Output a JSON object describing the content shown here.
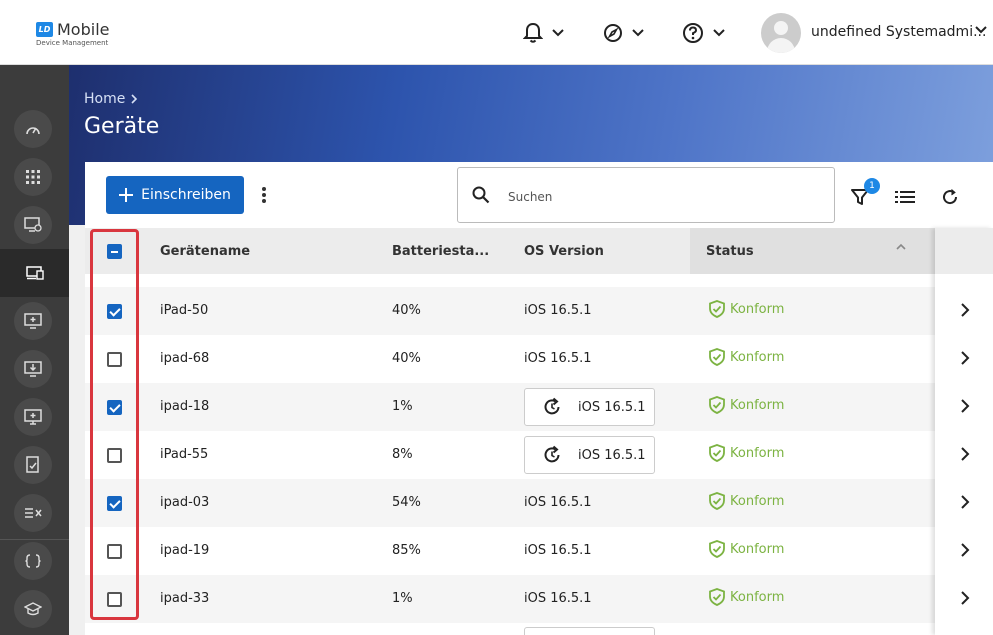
{
  "header": {
    "logo_mark": "LD",
    "logo_title": "Mobile",
    "logo_subtitle": "Device Management",
    "user_name": "undefined Systemadmi..."
  },
  "sidebar": {
    "items": [
      {
        "icon": "dashboard-icon"
      },
      {
        "icon": "apps-grid-icon"
      },
      {
        "icon": "device-settings-icon"
      },
      {
        "icon": "devices-icon",
        "active": true
      },
      {
        "icon": "device-add-icon"
      },
      {
        "icon": "device-download-icon"
      },
      {
        "icon": "monitor-add-icon"
      },
      {
        "icon": "compliance-icon"
      },
      {
        "icon": "rules-icon"
      },
      {
        "icon": "code-braces-icon"
      },
      {
        "icon": "school-icon"
      }
    ]
  },
  "page": {
    "breadcrumb": "Home",
    "title": "Geräte"
  },
  "toolbar": {
    "enroll_label": "Einschreiben",
    "search_placeholder": "Suchen",
    "filter_count": "1"
  },
  "table": {
    "columns": [
      "Gerätename",
      "Batteriesta...",
      "OS Version",
      "Status"
    ],
    "rows": [
      {
        "checked": true,
        "name": "iPad-50",
        "battery": "40%",
        "os": "iOS 16.5.1",
        "os_update": false,
        "status": "Konform"
      },
      {
        "checked": false,
        "name": "ipad-68",
        "battery": "40%",
        "os": "iOS 16.5.1",
        "os_update": false,
        "status": "Konform"
      },
      {
        "checked": true,
        "name": "ipad-18",
        "battery": "1%",
        "os": "iOS 16.5.1",
        "os_update": true,
        "status": "Konform"
      },
      {
        "checked": false,
        "name": "iPad-55",
        "battery": "8%",
        "os": "iOS 16.5.1",
        "os_update": true,
        "status": "Konform"
      },
      {
        "checked": true,
        "name": "ipad-03",
        "battery": "54%",
        "os": "iOS 16.5.1",
        "os_update": false,
        "status": "Konform"
      },
      {
        "checked": false,
        "name": "ipad-19",
        "battery": "85%",
        "os": "iOS 16.5.1",
        "os_update": false,
        "status": "Konform"
      },
      {
        "checked": false,
        "name": "ipad-33",
        "battery": "1%",
        "os": "iOS 16.5.1",
        "os_update": false,
        "status": "Konform"
      }
    ]
  },
  "colors": {
    "primary": "#1565c0",
    "status_ok": "#7cb342",
    "highlight": "#d9363e",
    "sidebar": "#3c3c3c"
  }
}
